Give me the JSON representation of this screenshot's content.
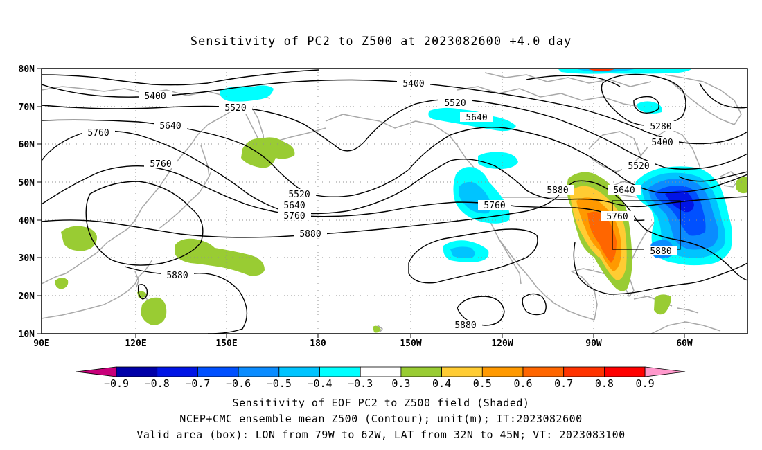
{
  "title": "Sensitivity of PC2 to Z500 at 2023082600 +4.0 day",
  "footer": {
    "line1": "Sensitivity of EOF PC2 to Z500 field (Shaded)",
    "line2": "NCEP+CMC ensemble mean Z500 (Contour); unit(m); IT:2023082600",
    "line3": "Valid area (box): LON from 79W to 62W, LAT from 32N to 45N; VT: 2023083100"
  },
  "axes": {
    "lat_labels": [
      "80N",
      "70N",
      "60N",
      "50N",
      "40N",
      "30N",
      "20N",
      "10N"
    ],
    "lon_labels": [
      "90E",
      "120E",
      "150E",
      "180",
      "150W",
      "120W",
      "90W",
      "60W"
    ]
  },
  "contour_labels": [
    "5400",
    "5400",
    "5520",
    "5520",
    "5640",
    "5640",
    "5760",
    "5760",
    "5280",
    "5400",
    "5520",
    "5640",
    "5880",
    "5520",
    "5640",
    "5760",
    "5760",
    "5760",
    "5880",
    "5880",
    "5880",
    "5880"
  ],
  "colorbar": {
    "tick_labels": [
      "−0.9",
      "−0.8",
      "−0.7",
      "−0.6",
      "−0.5",
      "−0.4",
      "−0.3",
      "0.3",
      "0.4",
      "0.5",
      "0.6",
      "0.7",
      "0.8",
      "0.9"
    ],
    "colors": [
      "#c8007a",
      "#0000a8",
      "#0014e6",
      "#0050ff",
      "#0a8cff",
      "#00c4ff",
      "#00ffff",
      "#ffffff",
      "#99cc33",
      "#ffcc33",
      "#ff9900",
      "#ff6600",
      "#ff3300",
      "#ff0000",
      "#ff99cc"
    ]
  }
}
